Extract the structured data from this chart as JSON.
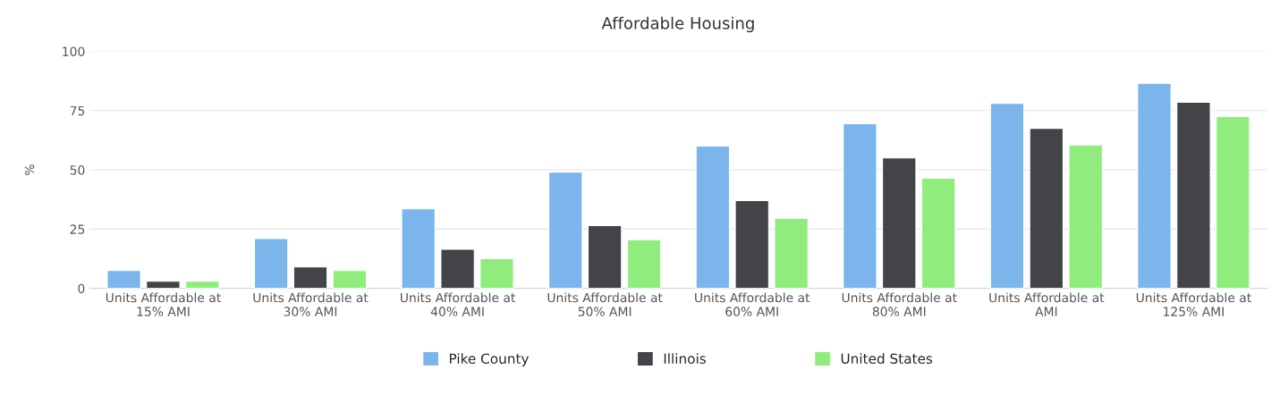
{
  "chart_data": {
    "type": "bar",
    "title": "Affordable Housing",
    "ylabel": "%",
    "categories": [
      "Units Affordable at 15% AMI",
      "Units Affordable at 30% AMI",
      "Units Affordable at 40% AMI",
      "Units Affordable at 50% AMI",
      "Units Affordable at 60% AMI",
      "Units Affordable at 80% AMI",
      "Units Affordable at AMI",
      "Units Affordable at 125% AMI"
    ],
    "series": [
      {
        "name": "Pike County",
        "color": "#7cb5ec",
        "values": [
          7.5,
          21,
          33.5,
          49,
          60,
          69.5,
          78,
          86.5
        ]
      },
      {
        "name": "Illinois",
        "color": "#434348",
        "values": [
          3,
          9,
          16.5,
          26.5,
          37,
          55,
          67.5,
          78.5
        ]
      },
      {
        "name": "United States",
        "color": "#90ed7d",
        "values": [
          3,
          7.5,
          12.5,
          20.5,
          29.5,
          46.5,
          60.5,
          72.5
        ]
      }
    ],
    "ylim": [
      0,
      100
    ],
    "yticks": [
      0,
      25,
      50,
      75,
      100
    ],
    "grid": "y",
    "legend": "bottom"
  }
}
